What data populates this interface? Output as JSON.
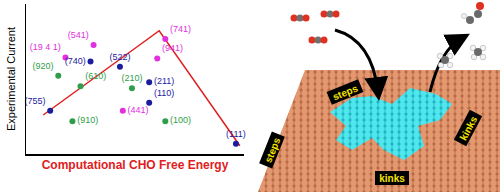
{
  "chart_data": {
    "type": "scatter",
    "xlabel": "Computational CHO Free Energy",
    "ylabel": "Experimental Current",
    "xlim": [
      0,
      100
    ],
    "ylim": [
      0,
      100
    ],
    "tick_labels": false,
    "grid": false,
    "x": [
      11.1,
      14.8,
      18.1,
      31.0,
      29.6,
      43.1,
      60.2,
      63.9,
      56.5,
      48.6,
      25.0,
      21.3,
      44.4,
      56.5,
      63.9,
      96.3
    ],
    "values": [
      28.8,
      52.1,
      64.4,
      72.6,
      61.6,
      58.2,
      63.7,
      76.7,
      47.9,
      43.8,
      45.2,
      21.9,
      28.8,
      34.2,
      21.9,
      6.8
    ],
    "labels": [
      "(755)",
      "(920)",
      "(19 4 1)",
      "(541)",
      "(740)",
      "(522)",
      "(941)",
      "(741)",
      "(211)",
      "(210)",
      "(610)",
      "(910)",
      "(441)",
      "(110)",
      "(100)",
      "(111)"
    ],
    "colors": [
      "#1c1c9e",
      "#2e9e4a",
      "#e030e0",
      "#e030e0",
      "#1c1c9e",
      "#1c1c9e",
      "#e030e0",
      "#e030e0",
      "#1c1c9e",
      "#2e9e4a",
      "#2e9e4a",
      "#2e9e4a",
      "#e030e0",
      "#1c1c9e",
      "#2e9e4a",
      "#1c1c9e"
    ],
    "volcano": {
      "x": [
        7.9,
        61.1,
        98.1
      ],
      "values": [
        26.0,
        82.2,
        5.5
      ],
      "color": "#e02020"
    }
  },
  "illustration": {
    "labels": [
      "steps",
      "steps",
      "kinks",
      "kinks"
    ]
  }
}
